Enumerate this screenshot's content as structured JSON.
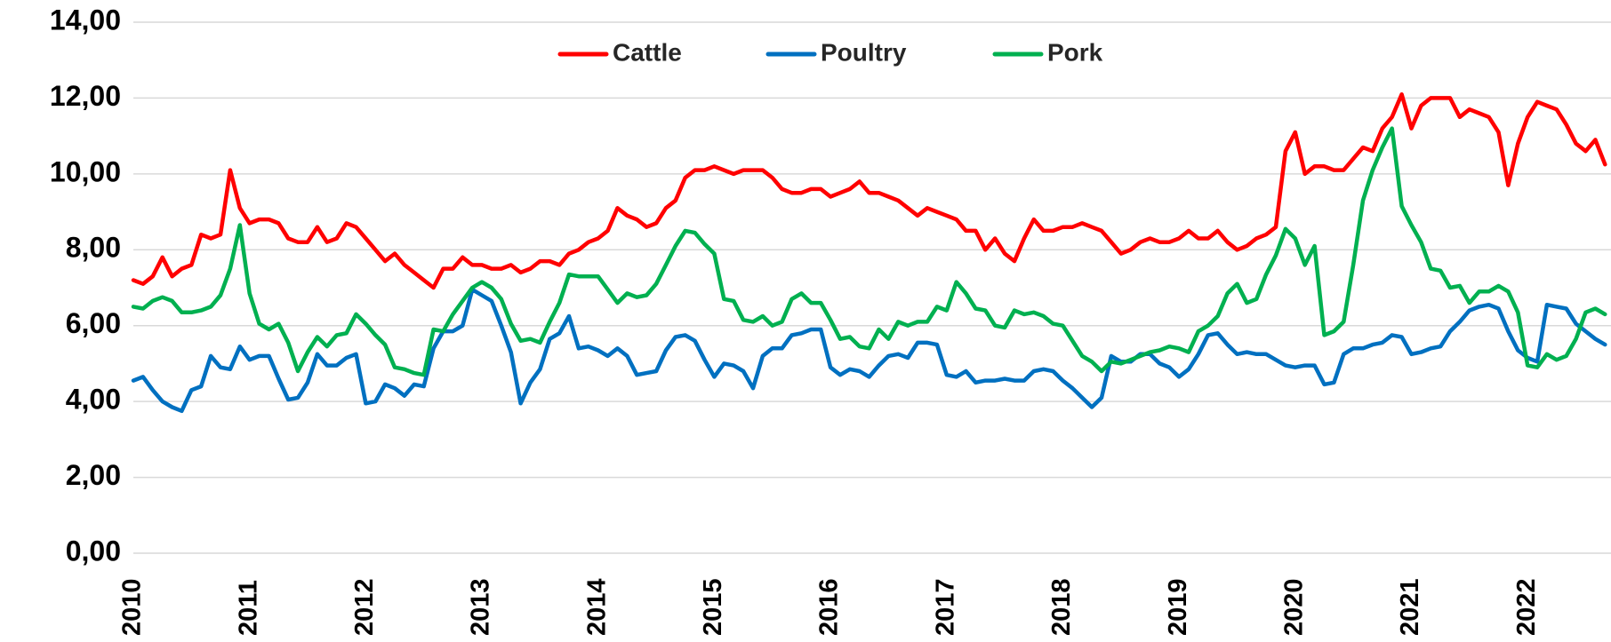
{
  "chart_data": {
    "type": "line",
    "categories": [
      "2010",
      null,
      null,
      null,
      null,
      null,
      null,
      null,
      null,
      null,
      null,
      null,
      "2011",
      null,
      null,
      null,
      null,
      null,
      null,
      null,
      null,
      null,
      null,
      null,
      "2012",
      null,
      null,
      null,
      null,
      null,
      null,
      null,
      null,
      null,
      null,
      null,
      "2013",
      null,
      null,
      null,
      null,
      null,
      null,
      null,
      null,
      null,
      null,
      null,
      "2014",
      null,
      null,
      null,
      null,
      null,
      null,
      null,
      null,
      null,
      null,
      null,
      "2015",
      null,
      null,
      null,
      null,
      null,
      null,
      null,
      null,
      null,
      null,
      null,
      "2016",
      null,
      null,
      null,
      null,
      null,
      null,
      null,
      null,
      null,
      null,
      null,
      "2017",
      null,
      null,
      null,
      null,
      null,
      null,
      null,
      null,
      null,
      null,
      null,
      "2018",
      null,
      null,
      null,
      null,
      null,
      null,
      null,
      null,
      null,
      null,
      null,
      "2019",
      null,
      null,
      null,
      null,
      null,
      null,
      null,
      null,
      null,
      null,
      null,
      "2020",
      null,
      null,
      null,
      null,
      null,
      null,
      null,
      null,
      null,
      null,
      null,
      "2021",
      null,
      null,
      null,
      null,
      null,
      null,
      null,
      null,
      null,
      null,
      null,
      "2022",
      null,
      null,
      null,
      null,
      null,
      null,
      null,
      null
    ],
    "series": [
      {
        "name": "Cattle",
        "color": "#ff0000",
        "values": [
          7.2,
          7.1,
          7.3,
          7.8,
          7.3,
          7.5,
          7.6,
          8.4,
          8.3,
          8.4,
          10.1,
          9.1,
          8.7,
          8.8,
          8.8,
          8.7,
          8.3,
          8.2,
          8.2,
          8.6,
          8.2,
          8.3,
          8.7,
          8.6,
          8.3,
          8.0,
          7.7,
          7.9,
          7.6,
          7.4,
          7.2,
          7.0,
          7.5,
          7.5,
          7.8,
          7.6,
          7.6,
          7.5,
          7.5,
          7.6,
          7.4,
          7.5,
          7.7,
          7.7,
          7.6,
          7.9,
          8.0,
          8.2,
          8.3,
          8.5,
          9.1,
          8.9,
          8.8,
          8.6,
          8.7,
          9.1,
          9.3,
          9.9,
          10.1,
          10.1,
          10.2,
          10.1,
          10.0,
          10.1,
          10.1,
          10.1,
          9.9,
          9.6,
          9.5,
          9.5,
          9.6,
          9.6,
          9.4,
          9.5,
          9.6,
          9.8,
          9.5,
          9.5,
          9.4,
          9.3,
          9.1,
          8.9,
          9.1,
          9.0,
          8.9,
          8.8,
          8.5,
          8.5,
          8.0,
          8.3,
          7.9,
          7.7,
          8.3,
          8.8,
          8.5,
          8.5,
          8.6,
          8.6,
          8.7,
          8.6,
          8.5,
          8.2,
          7.9,
          8.0,
          8.2,
          8.3,
          8.2,
          8.2,
          8.3,
          8.5,
          8.3,
          8.3,
          8.5,
          8.2,
          8.0,
          8.1,
          8.3,
          8.4,
          8.6,
          10.6,
          11.1,
          10.0,
          10.2,
          10.2,
          10.1,
          10.1,
          10.4,
          10.7,
          10.6,
          11.2,
          11.5,
          12.1,
          11.2,
          11.8,
          12.0,
          12.0,
          12.0,
          11.5,
          11.7,
          11.6,
          11.5,
          11.1,
          9.7,
          10.8,
          11.5,
          11.9,
          11.8,
          11.7,
          11.3,
          10.8,
          10.6,
          10.9,
          10.25
        ]
      },
      {
        "name": "Poultry",
        "color": "#0070c0",
        "values": [
          4.55,
          4.65,
          4.3,
          4.0,
          3.85,
          3.75,
          4.3,
          4.4,
          5.2,
          4.9,
          4.85,
          5.45,
          5.1,
          5.2,
          5.2,
          4.6,
          4.05,
          4.1,
          4.5,
          5.25,
          4.95,
          4.95,
          5.15,
          5.25,
          3.95,
          4.0,
          4.45,
          4.35,
          4.15,
          4.45,
          4.4,
          5.4,
          5.85,
          5.85,
          6.0,
          6.95,
          6.8,
          6.65,
          6.0,
          5.3,
          3.95,
          4.5,
          4.85,
          5.65,
          5.8,
          6.25,
          5.4,
          5.45,
          5.35,
          5.2,
          5.4,
          5.2,
          4.7,
          4.75,
          4.8,
          5.35,
          5.7,
          5.75,
          5.6,
          5.1,
          4.65,
          5.0,
          4.95,
          4.8,
          4.35,
          5.2,
          5.4,
          5.4,
          5.75,
          5.8,
          5.9,
          5.9,
          4.9,
          4.7,
          4.85,
          4.8,
          4.65,
          4.95,
          5.2,
          5.25,
          5.15,
          5.55,
          5.55,
          5.5,
          4.7,
          4.65,
          4.8,
          4.5,
          4.55,
          4.55,
          4.6,
          4.55,
          4.55,
          4.8,
          4.85,
          4.8,
          4.55,
          4.35,
          4.1,
          3.85,
          4.1,
          5.2,
          5.05,
          5.05,
          5.25,
          5.25,
          5.0,
          4.9,
          4.65,
          4.85,
          5.25,
          5.75,
          5.8,
          5.5,
          5.25,
          5.3,
          5.25,
          5.25,
          5.1,
          4.95,
          4.9,
          4.95,
          4.95,
          4.45,
          4.5,
          5.25,
          5.4,
          5.4,
          5.5,
          5.55,
          5.75,
          5.7,
          5.25,
          5.3,
          5.4,
          5.45,
          5.85,
          6.1,
          6.4,
          6.5,
          6.55,
          6.45,
          5.85,
          5.35,
          5.15,
          5.05,
          6.55,
          6.5,
          6.45,
          6.05,
          5.85,
          5.65,
          5.5
        ]
      },
      {
        "name": "Pork",
        "color": "#00b050",
        "values": [
          6.5,
          6.45,
          6.65,
          6.75,
          6.65,
          6.35,
          6.35,
          6.4,
          6.5,
          6.8,
          7.5,
          8.65,
          6.85,
          6.05,
          5.9,
          6.05,
          5.55,
          4.8,
          5.3,
          5.7,
          5.45,
          5.75,
          5.8,
          6.3,
          6.05,
          5.75,
          5.5,
          4.9,
          4.85,
          4.75,
          4.7,
          5.9,
          5.85,
          6.3,
          6.65,
          7.0,
          7.15,
          7.0,
          6.7,
          6.05,
          5.6,
          5.65,
          5.55,
          6.1,
          6.6,
          7.35,
          7.3,
          7.3,
          7.3,
          6.95,
          6.6,
          6.85,
          6.75,
          6.8,
          7.1,
          7.6,
          8.1,
          8.5,
          8.45,
          8.15,
          7.9,
          6.7,
          6.65,
          6.15,
          6.1,
          6.25,
          6.0,
          6.1,
          6.7,
          6.85,
          6.6,
          6.6,
          6.15,
          5.65,
          5.7,
          5.45,
          5.4,
          5.9,
          5.65,
          6.1,
          6.0,
          6.1,
          6.1,
          6.5,
          6.4,
          7.15,
          6.85,
          6.45,
          6.4,
          6.0,
          5.95,
          6.4,
          6.3,
          6.35,
          6.25,
          6.05,
          6.0,
          5.6,
          5.2,
          5.05,
          4.8,
          5.05,
          5.0,
          5.1,
          5.2,
          5.3,
          5.35,
          5.45,
          5.4,
          5.3,
          5.85,
          6.0,
          6.25,
          6.85,
          7.1,
          6.6,
          6.7,
          7.35,
          7.85,
          8.55,
          8.3,
          7.6,
          8.1,
          5.75,
          5.85,
          6.1,
          7.6,
          9.3,
          10.1,
          10.7,
          11.2,
          9.15,
          8.65,
          8.2,
          7.5,
          7.45,
          7.0,
          7.05,
          6.6,
          6.9,
          6.9,
          7.05,
          6.9,
          6.35,
          4.95,
          4.9,
          5.25,
          5.1,
          5.2,
          5.65,
          6.35,
          6.45,
          6.3
        ]
      }
    ],
    "ylim": [
      0,
      14
    ],
    "yticks": [
      {
        "value": 0,
        "label": "0,00"
      },
      {
        "value": 2,
        "label": "2,00"
      },
      {
        "value": 4,
        "label": "4,00"
      },
      {
        "value": 6,
        "label": "6,00"
      },
      {
        "value": 8,
        "label": "8,00"
      },
      {
        "value": 10,
        "label": "10,00"
      },
      {
        "value": 12,
        "label": "12,00"
      },
      {
        "value": 14,
        "label": "14,00"
      }
    ],
    "grid": true,
    "legend": "top"
  }
}
